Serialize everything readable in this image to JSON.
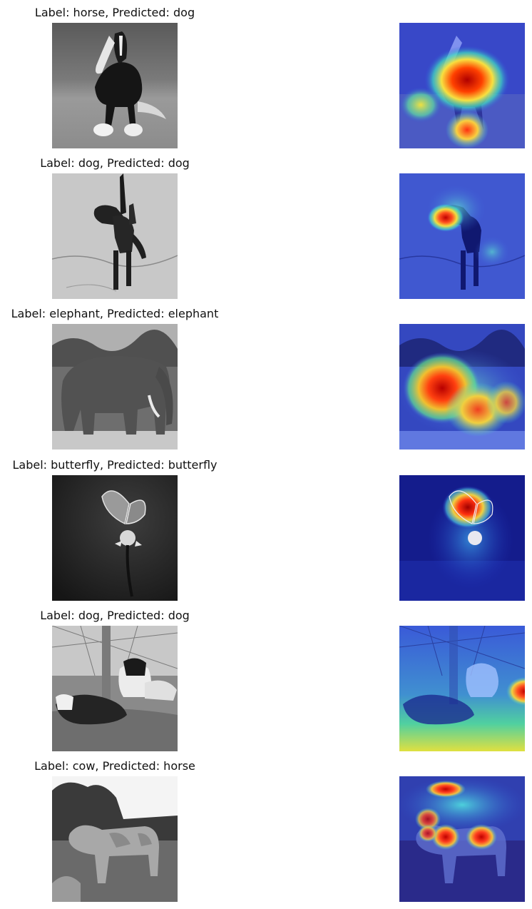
{
  "rows": [
    {
      "title": "Label: horse, Predicted: dog"
    },
    {
      "title": "Label: dog, Predicted: dog"
    },
    {
      "title": "Label: elephant, Predicted: elephant"
    },
    {
      "title": "Label: butterfly, Predicted: butterfly"
    },
    {
      "title": "Label: dog, Predicted: dog"
    },
    {
      "title": "Label: cow, Predicted: horse"
    }
  ]
}
